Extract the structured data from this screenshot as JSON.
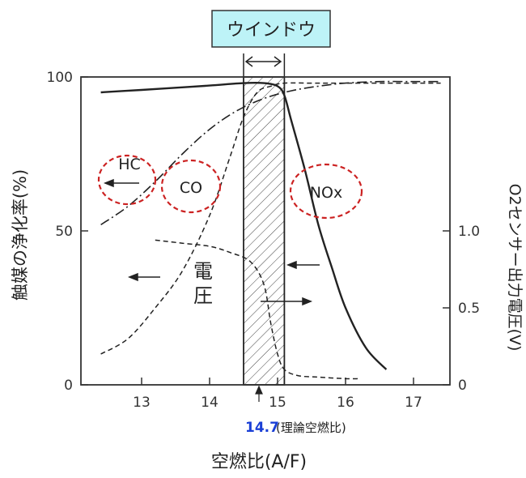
{
  "chart_data": {
    "type": "line",
    "window_label": "ウインドウ",
    "xlabel": "空燃比(A/F)",
    "ylabel_left": "触媒の浄化率(%)",
    "ylabel_right": "O2センサー出力電圧(V)",
    "stoich_value": "14.7",
    "stoich_label": "(理論空燃比)",
    "xlim": [
      12.2,
      17.5
    ],
    "ylim_left": [
      0,
      100
    ],
    "ylim_right": [
      0,
      2.0
    ],
    "x_ticks": [
      "13",
      "14",
      "15",
      "16",
      "17"
    ],
    "y_ticks_left": [
      "0",
      "50",
      "100"
    ],
    "y_ticks_right": [
      "0",
      "0.5",
      "1.0"
    ],
    "window_range": [
      14.5,
      15.1
    ],
    "labels": {
      "hc": "HC",
      "co": "CO",
      "nox": "NOx",
      "voltage": "電圧"
    },
    "series": [
      {
        "key": "nox",
        "style": "solid",
        "axis": "left",
        "x": [
          12.4,
          13.0,
          13.5,
          14.0,
          14.5,
          14.8,
          15.0,
          15.1,
          15.2,
          15.4,
          15.6,
          15.8,
          16.0,
          16.3,
          16.6
        ],
        "y": [
          95,
          95.8,
          96.5,
          97.2,
          98,
          98,
          97,
          94,
          86,
          70,
          52,
          38,
          25,
          12,
          5
        ]
      },
      {
        "key": "hc",
        "style": "dashdot",
        "axis": "left",
        "x": [
          12.4,
          12.8,
          13.2,
          13.6,
          14.0,
          14.4,
          14.8,
          15.2,
          15.6,
          16.0,
          16.5,
          17.0,
          17.4
        ],
        "y": [
          52,
          58,
          66,
          75,
          83,
          89,
          93,
          95.5,
          97,
          98,
          98.5,
          98.5,
          98.5
        ]
      },
      {
        "key": "co",
        "style": "dashed",
        "axis": "left",
        "x": [
          12.4,
          12.8,
          13.2,
          13.6,
          14.0,
          14.3,
          14.5,
          14.7,
          14.9,
          15.1,
          15.5,
          16.0,
          17.0,
          17.4
        ],
        "y": [
          10,
          15,
          25,
          37,
          55,
          74,
          87,
          95,
          97,
          98,
          98,
          98,
          98,
          98
        ]
      },
      {
        "key": "voltage",
        "style": "dashed",
        "axis": "right",
        "x": [
          13.2,
          13.6,
          14.0,
          14.3,
          14.6,
          14.8,
          14.9,
          15.0,
          15.1,
          15.3,
          15.6,
          16.0,
          16.2
        ],
        "y": [
          0.94,
          0.92,
          0.9,
          0.86,
          0.8,
          0.65,
          0.4,
          0.2,
          0.1,
          0.06,
          0.05,
          0.04,
          0.04
        ]
      }
    ]
  }
}
